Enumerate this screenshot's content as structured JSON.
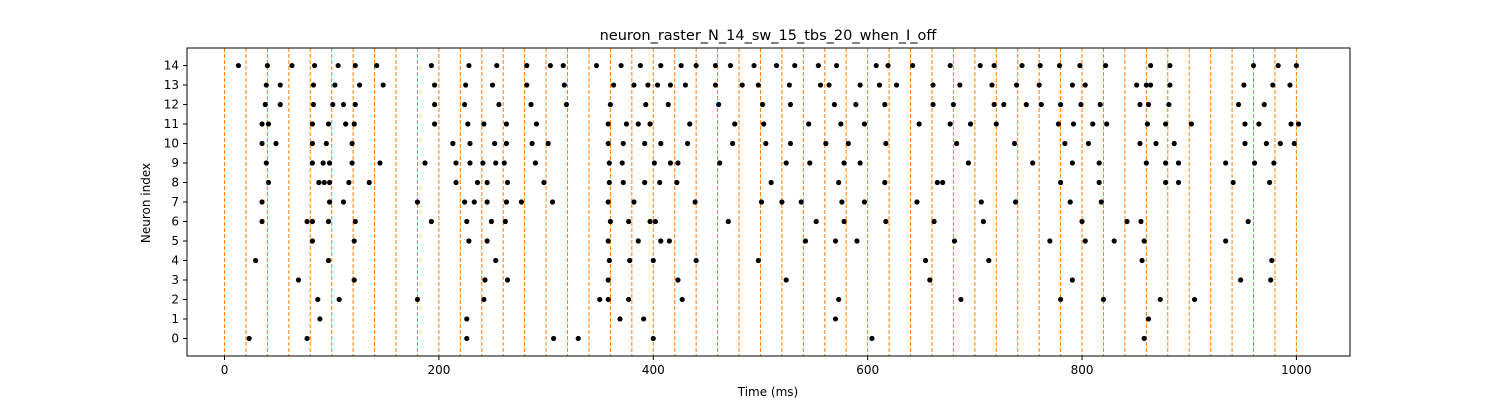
{
  "chart_data": {
    "type": "scatter",
    "title": "neuron_raster_N_14_sw_15_tbs_20_when_I_off",
    "xlabel": "Time (ms)",
    "ylabel": "Neuron index",
    "xlim": [
      -35,
      1050
    ],
    "ylim": [
      -0.9,
      14.9
    ],
    "xticks": [
      0,
      200,
      400,
      600,
      800,
      1000
    ],
    "yticks": [
      0,
      1,
      2,
      3,
      4,
      5,
      6,
      7,
      8,
      9,
      10,
      11,
      12,
      13,
      14
    ],
    "grid": false,
    "legend": "none",
    "marker_color": "#000000",
    "vline_color": "#ff7f0e",
    "vline_style": "dashed",
    "vlines_x": [
      0,
      20,
      40,
      60,
      80,
      100,
      120,
      140,
      160,
      180,
      200,
      220,
      240,
      260,
      280,
      300,
      320,
      340,
      360,
      380,
      400,
      420,
      440,
      460,
      480,
      500,
      520,
      540,
      560,
      580,
      600,
      620,
      640,
      660,
      680,
      700,
      720,
      740,
      760,
      780,
      800,
      820,
      840,
      860,
      880,
      900,
      920,
      940,
      960,
      980,
      1000
    ],
    "spikes": [
      {
        "neuron": 0,
        "times": [
          23,
          77,
          226,
          307,
          330,
          400,
          604,
          858
        ]
      },
      {
        "neuron": 1,
        "times": [
          89,
          226,
          369,
          391,
          570,
          862
        ]
      },
      {
        "neuron": 2,
        "times": [
          87,
          107,
          180,
          242,
          350,
          358,
          377,
          427,
          573,
          687,
          780,
          820,
          873,
          905
        ]
      },
      {
        "neuron": 3,
        "times": [
          69,
          121,
          243,
          264,
          358,
          423,
          524,
          658,
          791,
          948,
          976
        ]
      },
      {
        "neuron": 4,
        "times": [
          29,
          97,
          253,
          359,
          378,
          400,
          440,
          498,
          654,
          713,
          856,
          977
        ]
      },
      {
        "neuron": 5,
        "times": [
          82,
          121,
          228,
          245,
          358,
          386,
          407,
          415,
          542,
          570,
          590,
          681,
          770,
          803,
          830,
          858,
          934
        ]
      },
      {
        "neuron": 6,
        "times": [
          35,
          77,
          82,
          97,
          122,
          193,
          226,
          249,
          262,
          360,
          377,
          397,
          402,
          470,
          552,
          578,
          617,
          662,
          708,
          800,
          842,
          855,
          955
        ]
      },
      {
        "neuron": 7,
        "times": [
          35,
          98,
          111,
          180,
          224,
          233,
          245,
          263,
          277,
          306,
          358,
          382,
          439,
          501,
          520,
          538,
          576,
          597,
          646,
          706,
          738,
          789,
          818
        ]
      },
      {
        "neuron": 8,
        "times": [
          41,
          88,
          93,
          98,
          116,
          135,
          216,
          236,
          245,
          264,
          298,
          359,
          372,
          392,
          406,
          422,
          510,
          573,
          616,
          665,
          670,
          780,
          816,
          878,
          890,
          941,
          975
        ]
      },
      {
        "neuron": 9,
        "times": [
          39,
          82,
          92,
          98,
          119,
          145,
          187,
          216,
          229,
          241,
          253,
          261,
          290,
          359,
          371,
          401,
          416,
          423,
          462,
          524,
          546,
          578,
          593,
          694,
          754,
          791,
          816,
          860,
          878,
          890,
          934,
          961,
          979
        ]
      },
      {
        "neuron": 10,
        "times": [
          35,
          48,
          82,
          95,
          119,
          213,
          229,
          252,
          263,
          287,
          302,
          358,
          372,
          392,
          407,
          432,
          474,
          505,
          528,
          561,
          582,
          617,
          683,
          737,
          784,
          806,
          854,
          869,
          886,
          952,
          972,
          985,
          998
        ]
      },
      {
        "neuron": 11,
        "times": [
          35,
          41,
          82,
          97,
          113,
          121,
          196,
          227,
          242,
          263,
          291,
          358,
          375,
          386,
          397,
          434,
          476,
          503,
          545,
          575,
          597,
          648,
          677,
          696,
          720,
          778,
          792,
          810,
          823,
          861,
          878,
          902,
          952,
          965,
          995,
          1002
        ]
      },
      {
        "neuron": 12,
        "times": [
          38,
          52,
          83,
          101,
          111,
          122,
          196,
          224,
          256,
          286,
          319,
          360,
          393,
          414,
          461,
          502,
          528,
          569,
          589,
          616,
          661,
          680,
          718,
          727,
          748,
          762,
          780,
          799,
          817,
          854,
          862,
          881,
          946,
          970
        ]
      },
      {
        "neuron": 13,
        "times": [
          39,
          52,
          83,
          103,
          126,
          148,
          196,
          225,
          250,
          282,
          317,
          363,
          382,
          395,
          404,
          416,
          430,
          458,
          483,
          498,
          527,
          556,
          564,
          593,
          611,
          627,
          661,
          686,
          716,
          739,
          760,
          791,
          803,
          851,
          860,
          864,
          882,
          951,
          978,
          994
        ]
      },
      {
        "neuron": 14,
        "times": [
          13,
          40,
          63,
          84,
          106,
          122,
          142,
          193,
          228,
          254,
          282,
          304,
          316,
          347,
          370,
          388,
          407,
          426,
          440,
          458,
          472,
          494,
          515,
          532,
          554,
          571,
          608,
          619,
          642,
          677,
          705,
          718,
          744,
          761,
          779,
          798,
          822,
          864,
          882,
          960,
          983,
          1000
        ]
      }
    ]
  }
}
